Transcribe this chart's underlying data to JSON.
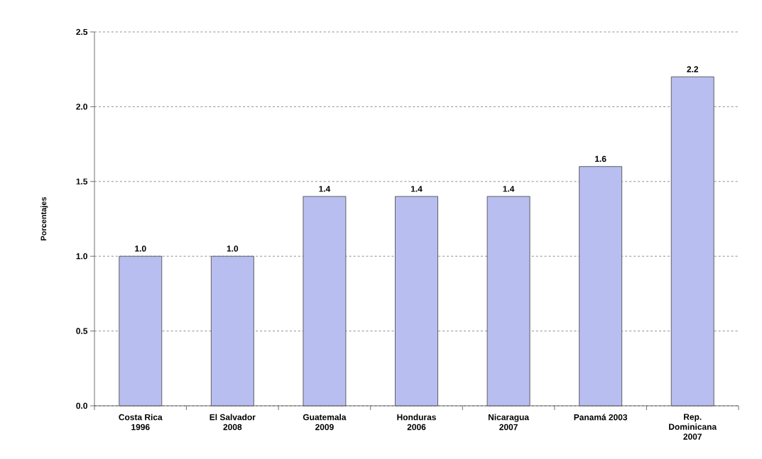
{
  "chart_data": {
    "type": "bar",
    "categories": [
      "Costa Rica 1996",
      "El Salvador 2008",
      "Guatemala 2009",
      "Honduras 2006",
      "Nicaragua 2007",
      "Panamá 2003",
      "Rep. Dominicana 2007"
    ],
    "values": [
      1.0,
      1.0,
      1.4,
      1.4,
      1.4,
      1.6,
      2.2
    ],
    "value_labels": [
      "1.0",
      "1.0",
      "1.4",
      "1.4",
      "1.4",
      "1.6",
      "2.2"
    ],
    "color": "#b8bef0",
    "ylabel": "Porcentajes",
    "ylim": [
      0,
      2.5
    ],
    "yticks": [
      {
        "value": 0,
        "label": "0.0"
      },
      0.5,
      {
        "value": 1,
        "label": "1.0"
      },
      1.5,
      {
        "value": 2,
        "label": "2.0"
      },
      2.5
    ],
    "grid": "y"
  }
}
